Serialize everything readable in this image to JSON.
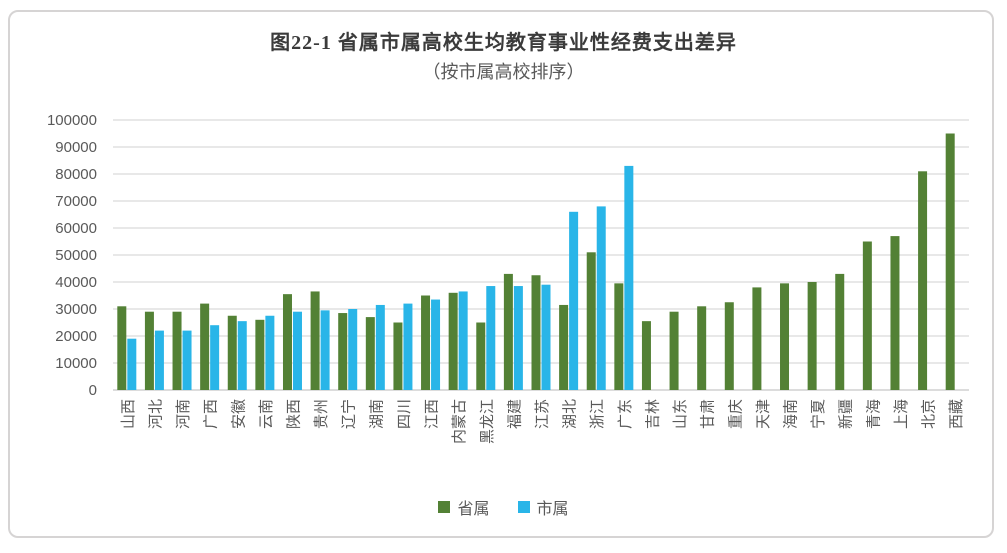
{
  "colors": {
    "provincial_green": "#538135",
    "municipal_blue": "#29B5E8",
    "grid": "#D9D9D9",
    "axis_line": "#C6C6C6",
    "axis_text": "#595959",
    "title_text": "#3B3B3B",
    "frame_border": "#D6D4D4"
  },
  "chart_data": {
    "type": "bar",
    "title": "图22-1 省属市属高校生均教育事业性经费支出差异",
    "subtitle": "（按市属高校排序）",
    "categories": [
      "山西",
      "河北",
      "河南",
      "广西",
      "安徽",
      "云南",
      "陕西",
      "贵州",
      "辽宁",
      "湖南",
      "四川",
      "江西",
      "内蒙古",
      "黑龙江",
      "福建",
      "江苏",
      "湖北",
      "浙江",
      "广东",
      "吉林",
      "山东",
      "甘肃",
      "重庆",
      "天津",
      "海南",
      "宁夏",
      "新疆",
      "青海",
      "上海",
      "北京",
      "西藏"
    ],
    "series": [
      {
        "key": "provincial",
        "name": "省属",
        "color": "#538135",
        "values": [
          31000,
          29000,
          29000,
          32000,
          27500,
          26000,
          35500,
          36500,
          28500,
          27000,
          25000,
          35000,
          36000,
          25000,
          43000,
          42500,
          31500,
          51000,
          39500,
          25500,
          29000,
          31000,
          32500,
          38000,
          39500,
          40000,
          43000,
          55000,
          57000,
          81000,
          95000
        ]
      },
      {
        "key": "municipal",
        "name": "市属",
        "color": "#29B5E8",
        "values": [
          19000,
          22000,
          22000,
          24000,
          25500,
          27500,
          29000,
          29500,
          30000,
          31500,
          32000,
          33500,
          36500,
          38500,
          38500,
          39000,
          66000,
          68000,
          83000,
          null,
          null,
          null,
          null,
          null,
          null,
          null,
          null,
          null,
          null,
          null,
          null
        ]
      }
    ],
    "ylim": [
      0,
      100000
    ],
    "yticks": [
      0,
      10000,
      20000,
      30000,
      40000,
      50000,
      60000,
      70000,
      80000,
      90000,
      100000
    ],
    "grid": "horizontal",
    "legend_position": "bottom",
    "xlabel_rotation": -90
  }
}
